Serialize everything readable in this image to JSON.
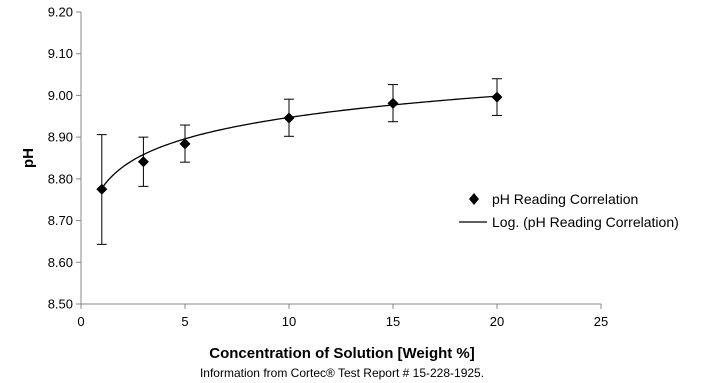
{
  "chart_data": {
    "type": "scatter",
    "title": "",
    "xlabel": "Concentration of Solution [Weight %]",
    "ylabel": "pH",
    "xlim": [
      0,
      25
    ],
    "ylim": [
      8.5,
      9.2
    ],
    "x_ticks": [
      "0",
      "5",
      "10",
      "15",
      "20",
      "25"
    ],
    "y_ticks": [
      "8.50",
      "8.60",
      "8.70",
      "8.80",
      "8.90",
      "9.00",
      "9.10",
      "9.20"
    ],
    "grid": false,
    "legend_position": "right",
    "series": [
      {
        "name": "pH Reading Correlation",
        "marker": "diamond",
        "color": "#000000",
        "x": [
          1,
          3,
          5,
          10,
          15,
          20
        ],
        "y": [
          8.775,
          8.841,
          8.884,
          8.946,
          8.981,
          8.996
        ],
        "error_low": [
          8.643,
          8.782,
          8.84,
          8.902,
          8.937,
          8.952
        ],
        "error_high": [
          8.906,
          8.9,
          8.929,
          8.991,
          9.026,
          9.04
        ]
      },
      {
        "name": "Log. (pH Reading Correlation)",
        "type": "line",
        "color": "#000000",
        "fit": "logarithmic",
        "a": 0.0739,
        "b": 8.777
      }
    ],
    "note": "Information from Cortec® Test Report # 15-228-1925."
  }
}
